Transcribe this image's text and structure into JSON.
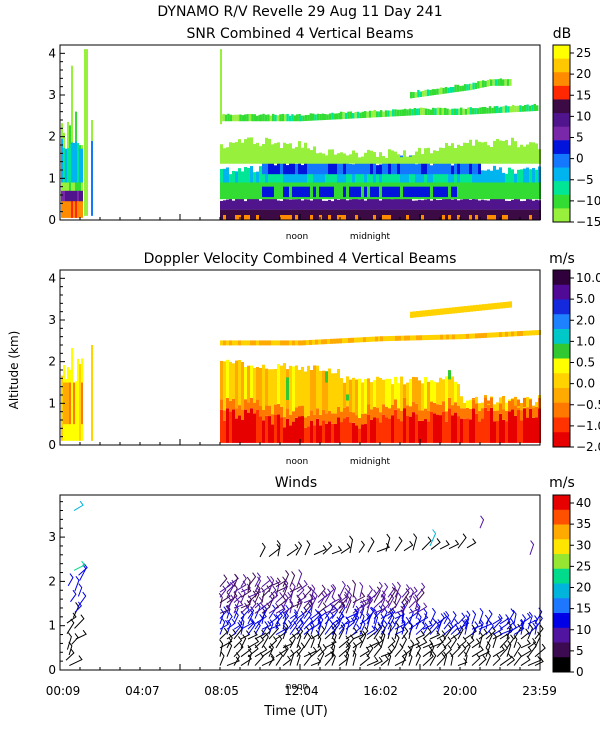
{
  "header": {
    "title": "DYNAMO R/V Revelle  29 Aug 11 Day 241",
    "ylabel": "Altitude (km)",
    "xlabel": "Time (UT)"
  },
  "chart_data": [
    {
      "type": "heatmap",
      "title": "SNR Combined 4 Vertical Beams",
      "units": "dB",
      "ylim": [
        0,
        4.2
      ],
      "yticks": [
        "0",
        "1",
        "2",
        "3",
        "4"
      ],
      "xlabels": [
        "noon",
        "midnight"
      ],
      "colorbar": {
        "labels": [
          "25",
          "20",
          "15",
          "10",
          "5",
          "0",
          "−5",
          "−10",
          "−15"
        ],
        "colors": [
          "#ffff00",
          "#ffc800",
          "#ff8c00",
          "#ff2800",
          "#3c0b46",
          "#50148c",
          "#7828a8",
          "#0014dc",
          "#1478ff",
          "#00b4f0",
          "#00e696",
          "#32dc32",
          "#96f03c"
        ]
      },
      "series": [
        {
          "name": "SNR band 2.5 km",
          "x_hours": [
            8.0,
            10.0,
            12.0,
            14.0,
            16.0,
            18.0,
            20.0,
            22.0,
            23.9
          ],
          "y_km": [
            2.45,
            2.45,
            2.45,
            2.5,
            2.55,
            2.6,
            2.6,
            2.65,
            2.7
          ]
        },
        {
          "name": "SNR layer 3.2 km",
          "x_hours": [
            17.5,
            19.0,
            20.5,
            21.5,
            22.5
          ],
          "y_km": [
            3.0,
            3.1,
            3.2,
            3.3,
            3.3
          ]
        }
      ]
    },
    {
      "type": "heatmap",
      "title": "Doppler Velocity Combined 4 Vertical Beams",
      "units": "m/s",
      "ylim": [
        0,
        4.2
      ],
      "yticks": [
        "0",
        "1",
        "2",
        "3",
        "4"
      ],
      "xlabels": [
        "noon",
        "midnight"
      ],
      "colorbar": {
        "labels": [
          "10.0",
          "5.0",
          "2.0",
          "1.0",
          "0.5",
          "0.0",
          "−0.5",
          "−1.0",
          "−2.0"
        ],
        "colors": [
          "#30003c",
          "#500a96",
          "#1428dc",
          "#1e82ff",
          "#00c8c8",
          "#32c832",
          "#ffff00",
          "#ffd200",
          "#ffaa00",
          "#ff7800",
          "#ff3200",
          "#e60000"
        ]
      },
      "series": [
        {
          "name": "Velocity band 2.5 km",
          "x_hours": [
            8.0,
            12.0,
            16.0,
            20.0,
            23.9
          ],
          "y_km": [
            2.45,
            2.45,
            2.55,
            2.6,
            2.7
          ]
        }
      ]
    },
    {
      "type": "scatter",
      "title": "Winds",
      "units": "m/s",
      "ylim": [
        0,
        3.95
      ],
      "yticks": [
        "0",
        "1",
        "2",
        "3"
      ],
      "xlabels": [
        "noon"
      ],
      "xticks": [
        "00:09",
        "04:07",
        "08:05",
        "12:04",
        "16:02",
        "20:00",
        "23:59"
      ],
      "x_tick_hours": [
        0.15,
        4.12,
        8.08,
        12.07,
        16.03,
        20.0,
        23.98
      ],
      "colorbar": {
        "labels": [
          "40",
          "35",
          "30",
          "25",
          "20",
          "15",
          "10",
          "5",
          "0"
        ],
        "colors": [
          "#e60000",
          "#ff5000",
          "#ffaa00",
          "#ffe600",
          "#96e632",
          "#00dc8c",
          "#00b4dc",
          "#1e78ff",
          "#0000e6",
          "#5014a0",
          "#3c0a50",
          "#000000"
        ]
      }
    }
  ]
}
